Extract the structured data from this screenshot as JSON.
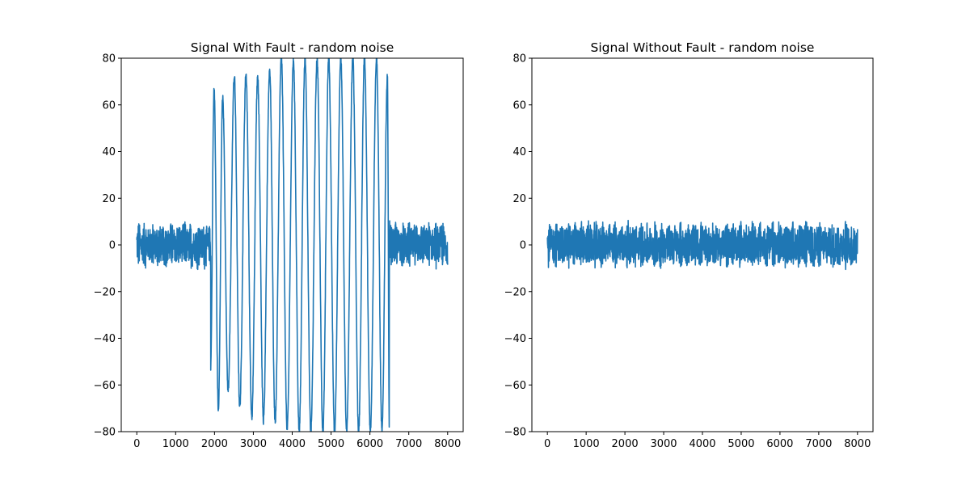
{
  "figure": {
    "background": "#ffffff",
    "line_color": "#1f77b4"
  },
  "chart_data": [
    {
      "type": "line",
      "title": "Signal With Fault - random noise",
      "xlabel": "",
      "ylabel": "",
      "xlim": [
        -400,
        8400
      ],
      "ylim": [
        -80,
        80
      ],
      "xticks": [
        0,
        1000,
        2000,
        3000,
        4000,
        5000,
        6000,
        7000,
        8000
      ],
      "yticks": [
        -80,
        -60,
        -40,
        -20,
        0,
        20,
        40,
        60,
        80
      ],
      "grid": false,
      "series": [
        {
          "color": "#1f77b4",
          "description_points": {
            "x_range": [
              0,
              8000
            ],
            "normal_segments": [
              [
                0,
                1900
              ],
              [
                6500,
                8000
              ]
            ],
            "normal_amplitude": 10,
            "normal_period": 170,
            "fault_segment": [
              1900,
              6500
            ],
            "fault_period": 200,
            "fault_peaks": [
              {
                "x": 1900,
                "y": -53
              },
              {
                "x": 1990,
                "y": 67
              },
              {
                "x": 2100,
                "y": -71
              },
              {
                "x": 2210,
                "y": 63
              },
              {
                "x": 2350,
                "y": -62
              },
              {
                "x": 2510,
                "y": 72
              },
              {
                "x": 2650,
                "y": -69
              },
              {
                "x": 2810,
                "y": 73
              },
              {
                "x": 2960,
                "y": -74
              },
              {
                "x": 3110,
                "y": 72
              },
              {
                "x": 3260,
                "y": -75
              },
              {
                "x": 3420,
                "y": 75
              },
              {
                "x": 3560,
                "y": -76
              },
              {
                "x": 3720,
                "y": 80
              },
              {
                "x": 3870,
                "y": -79
              },
              {
                "x": 4030,
                "y": 79
              },
              {
                "x": 4180,
                "y": -80
              },
              {
                "x": 4330,
                "y": 80
              },
              {
                "x": 4480,
                "y": -80
              },
              {
                "x": 4640,
                "y": 80
              },
              {
                "x": 4790,
                "y": -80
              },
              {
                "x": 4940,
                "y": 80
              },
              {
                "x": 5090,
                "y": -80
              },
              {
                "x": 5250,
                "y": 80
              },
              {
                "x": 5400,
                "y": -80
              },
              {
                "x": 5560,
                "y": 80
              },
              {
                "x": 5710,
                "y": -80
              },
              {
                "x": 5860,
                "y": 80
              },
              {
                "x": 6010,
                "y": -80
              },
              {
                "x": 6170,
                "y": 80
              },
              {
                "x": 6310,
                "y": -80
              },
              {
                "x": 6450,
                "y": 72
              },
              {
                "x": 6500,
                "y": -80
              }
            ]
          }
        }
      ]
    },
    {
      "type": "line",
      "title": "Signal Without Fault - random noise",
      "xlabel": "",
      "ylabel": "",
      "xlim": [
        -400,
        8400
      ],
      "ylim": [
        -80,
        80
      ],
      "xticks": [
        0,
        1000,
        2000,
        3000,
        4000,
        5000,
        6000,
        7000,
        8000
      ],
      "yticks": [
        -80,
        -60,
        -40,
        -20,
        0,
        20,
        40,
        60,
        80
      ],
      "grid": false,
      "series": [
        {
          "color": "#1f77b4",
          "description_points": {
            "x_range": [
              0,
              8000
            ],
            "normal_segments": [
              [
                0,
                8000
              ]
            ],
            "normal_amplitude": 10,
            "normal_period": 170
          }
        }
      ]
    }
  ]
}
